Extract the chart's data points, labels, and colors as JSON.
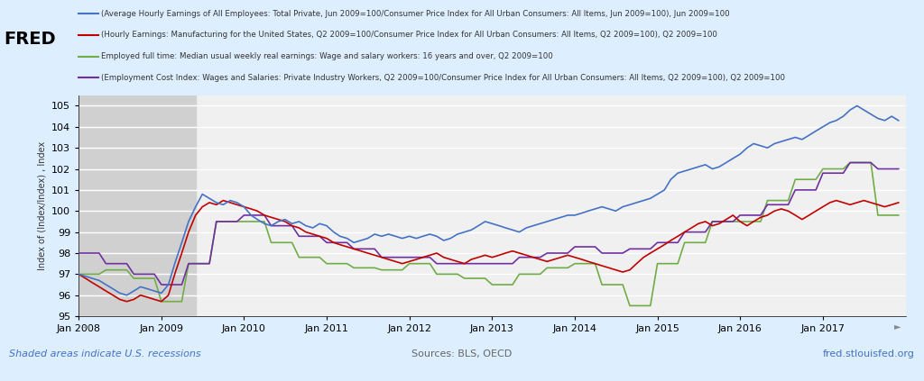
{
  "title_lines": [
    "(Average Hourly Earnings of All Employees: Total Private, Jun 2009=100/Consumer Price Index for All Urban Consumers: All Items, Jun 2009=100), Jun 2009=100",
    "(Hourly Earnings: Manufacturing for the United States, Q2 2009=100/Consumer Price Index for All Urban Consumers: All Items, Q2 2009=100), Q2 2009=100",
    "Employed full time: Median usual weekly real earnings: Wage and salary workers: 16 years and over, Q2 2009=100",
    "(Employment Cost Index: Wages and Salaries: Private Industry Workers, Q2 2009=100/Consumer Price Index for All Urban Consumers: All Items, Q2 2009=100), Q2 2009=100"
  ],
  "line_colors": [
    "#4472C4",
    "#C00000",
    "#70AD47",
    "#7030A0"
  ],
  "ylabel": "Index of (Index/Index) , Index",
  "ylim": [
    95,
    105.5
  ],
  "yticks": [
    95,
    96,
    97,
    98,
    99,
    100,
    101,
    102,
    103,
    104,
    105
  ],
  "bg_color": "#DDEEFF",
  "plot_bg_color": "#F0F0F0",
  "grid_color": "#FFFFFF",
  "recession_color": "#D0D0D0",
  "fred_red": "#CC0000",
  "footer_left": "Shaded areas indicate U.S. recessions",
  "footer_center": "Sources: BLS, OECD",
  "footer_right": "fred.stlouisfed.org"
}
